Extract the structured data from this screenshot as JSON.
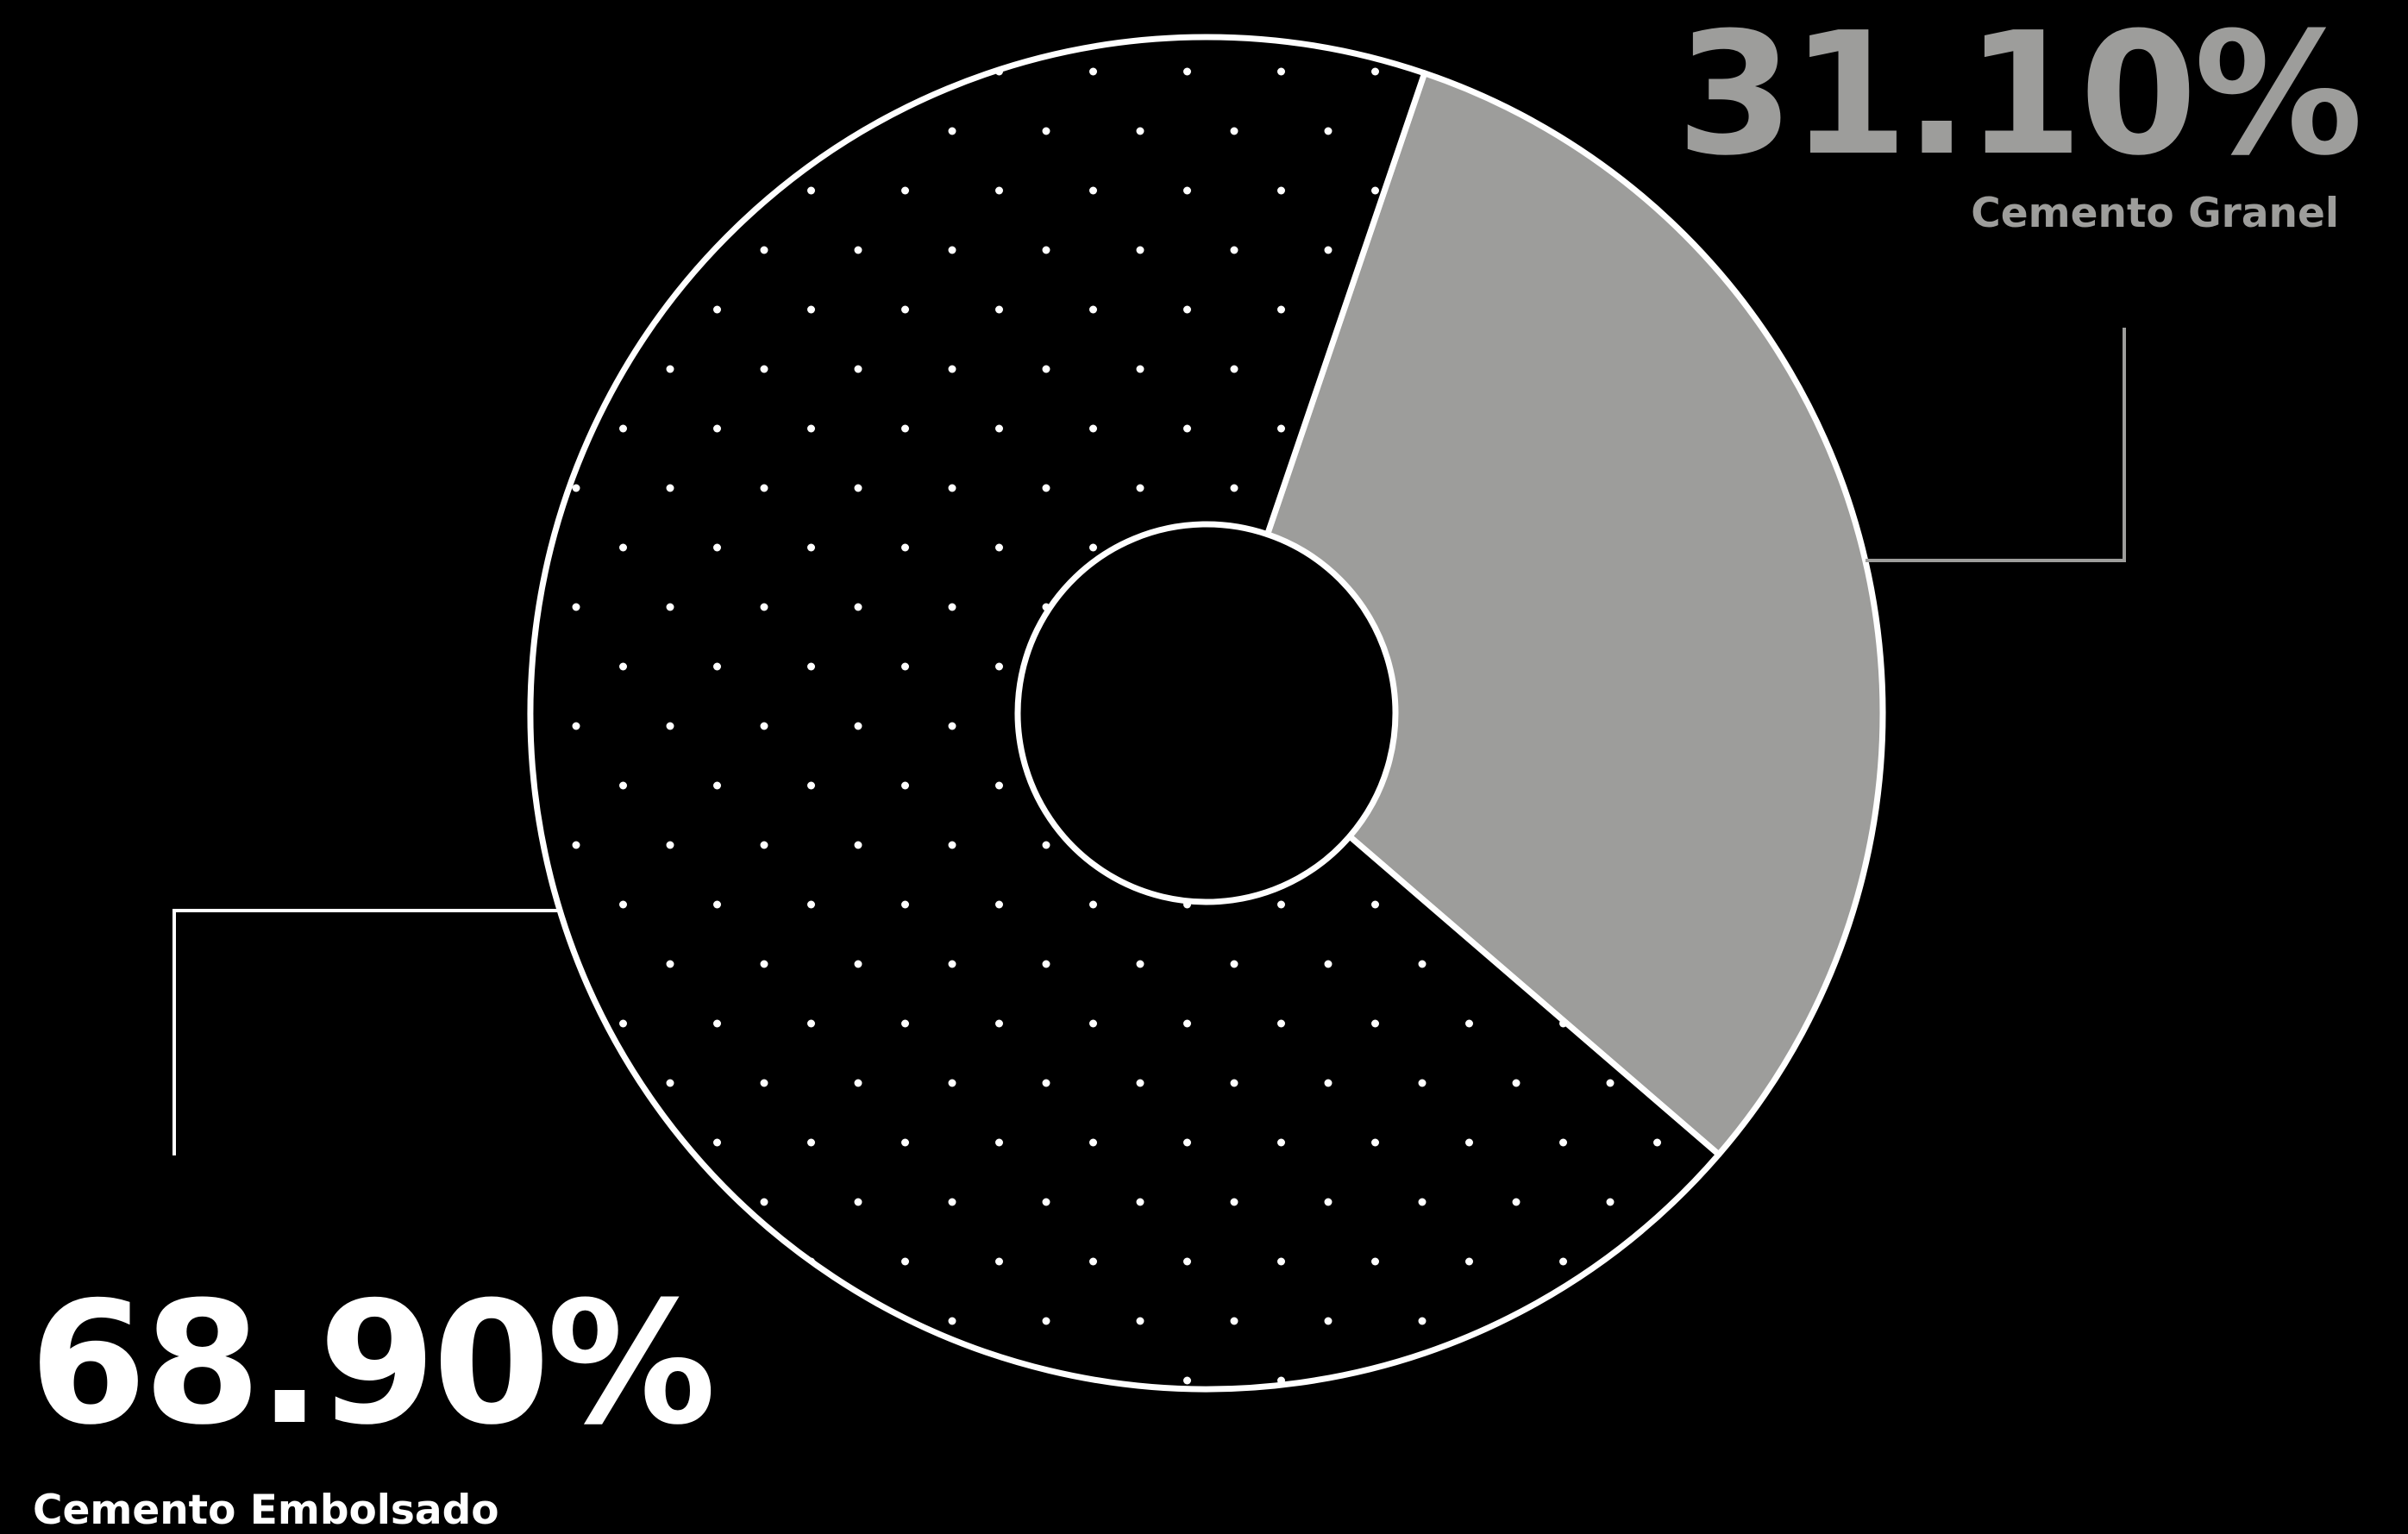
{
  "chart_data": {
    "type": "pie",
    "donut": true,
    "start_angle_deg": 18.8,
    "slices": [
      {
        "label": "Cemento Granel",
        "value": 31.1,
        "display_value": "31.10%",
        "fill": "#9d9d9b",
        "pattern": "solid",
        "label_color": "#9d9d9b",
        "label_position": "top-right"
      },
      {
        "label": "Cemento Embolsado",
        "value": 68.9,
        "display_value": "68.90%",
        "fill": "#000000",
        "pattern": "dots",
        "label_color": "#ffffff",
        "label_position": "bottom-left"
      }
    ],
    "outline_color": "#ffffff",
    "background": "#000000",
    "legend": "none"
  }
}
